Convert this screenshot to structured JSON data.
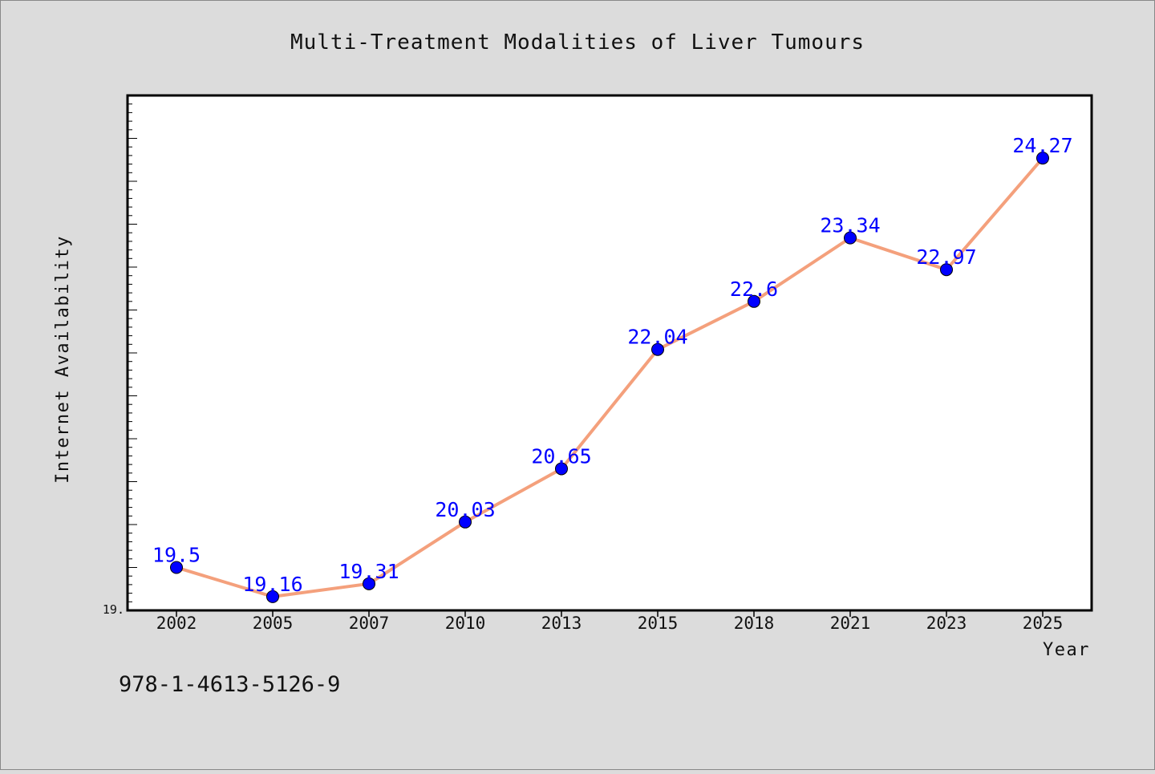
{
  "chart_data": {
    "type": "line",
    "title": "Multi-Treatment Modalities of Liver Tumours",
    "xlabel": "Year",
    "ylabel": "Internet Availability",
    "categories": [
      "2002",
      "2005",
      "2007",
      "2010",
      "2013",
      "2015",
      "2018",
      "2021",
      "2023",
      "2025"
    ],
    "series": [
      {
        "values": [
          19.5,
          19.16,
          19.31,
          20.03,
          20.65,
          22.04,
          22.6,
          23.34,
          22.97,
          24.27
        ],
        "labels": [
          "19.5",
          "19.16",
          "19.31",
          "20.03",
          "20.65",
          "22.04",
          "22.6",
          "23.34",
          "22.97",
          "24.27"
        ]
      }
    ],
    "y_tick_label": "19.",
    "ylim": [
      19.0,
      25.0
    ],
    "grid": false,
    "line_color": "#f4a07c",
    "marker_color": "#0000ff",
    "label_color": "#0000ff",
    "background_color": "#dcdcdc",
    "plot_background_color": "#ffffff"
  },
  "footer": {
    "isbn": "978-1-4613-5126-9"
  }
}
